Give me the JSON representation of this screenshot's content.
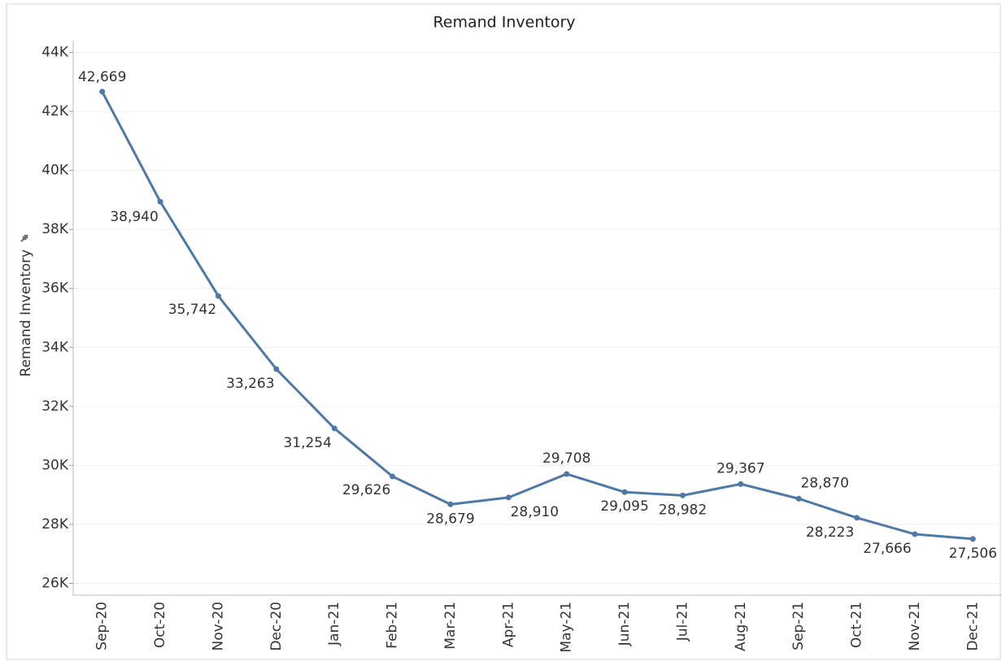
{
  "chart_data": {
    "type": "line",
    "title": "Remand Inventory",
    "y_label": "Remand Inventory",
    "categories": [
      "Sep-20",
      "Oct-20",
      "Nov-20",
      "Dec-20",
      "Jan-21",
      "Feb-21",
      "Mar-21",
      "Apr-21",
      "May-21",
      "Jun-21",
      "Jul-21",
      "Aug-21",
      "Sep-21",
      "Oct-21",
      "Nov-21",
      "Dec-21"
    ],
    "series": [
      {
        "name": "Remand Inventory",
        "color": "#4e79a7",
        "values": [
          42669,
          38940,
          35742,
          33263,
          31254,
          29626,
          28679,
          28910,
          29708,
          29095,
          28982,
          29367,
          28870,
          28223,
          27666,
          27506
        ],
        "value_labels": [
          "42,669",
          "38,940",
          "35,742",
          "33,263",
          "31,254",
          "29,626",
          "28,679",
          "28,910",
          "29,708",
          "29,095",
          "28,982",
          "29,367",
          "28,870",
          "28,223",
          "27,666",
          "27,506"
        ]
      }
    ],
    "ylim": [
      25600,
      44400
    ],
    "yticks": [
      {
        "value": 26000,
        "label": "26K"
      },
      {
        "value": 28000,
        "label": "28K"
      },
      {
        "value": 30000,
        "label": "30K"
      },
      {
        "value": 32000,
        "label": "32K"
      },
      {
        "value": 34000,
        "label": "34K"
      },
      {
        "value": 36000,
        "label": "36K"
      },
      {
        "value": 38000,
        "label": "38K"
      },
      {
        "value": 40000,
        "label": "40K"
      },
      {
        "value": 42000,
        "label": "42K"
      },
      {
        "value": 44000,
        "label": "44K"
      }
    ],
    "grid": true
  }
}
